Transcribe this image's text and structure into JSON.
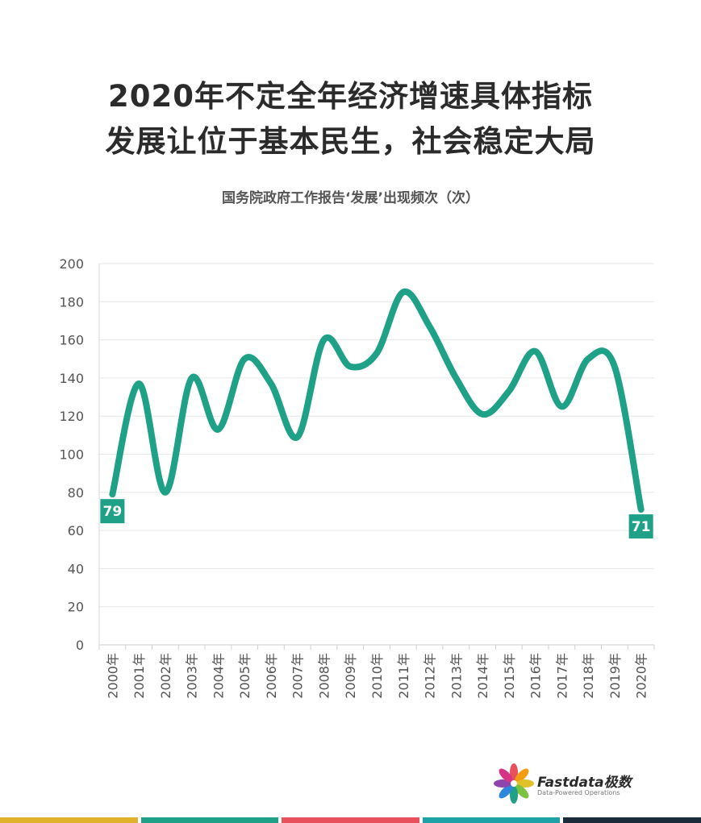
{
  "title": {
    "line1": "2020年不定全年经济增速具体指标",
    "line2": "发展让位于基本民生，社会稳定大局"
  },
  "chart_data": {
    "type": "line",
    "title": "国务院政府工作报告‘发展’出现频次（次）",
    "xlabel": "",
    "ylabel": "",
    "ylim": [
      0,
      200
    ],
    "yticks": [
      0,
      20,
      40,
      60,
      80,
      100,
      120,
      140,
      160,
      180,
      200
    ],
    "grid": true,
    "categories": [
      "2000年",
      "2001年",
      "2002年",
      "2003年",
      "2004年",
      "2005年",
      "2006年",
      "2007年",
      "2008年",
      "2009年",
      "2010年",
      "2011年",
      "2012年",
      "2013年",
      "2014年",
      "2015年",
      "2016年",
      "2017年",
      "2018年",
      "2019年",
      "2020年"
    ],
    "series": [
      {
        "values": [
          79,
          137,
          80,
          140,
          113,
          150,
          137,
          109,
          160,
          146,
          153,
          185,
          167,
          140,
          121,
          133,
          154,
          125,
          150,
          146,
          71
        ]
      }
    ],
    "data_labels": [
      {
        "index": 0,
        "text": "79"
      },
      {
        "index": 20,
        "text": "71"
      }
    ],
    "line_color": "#1fa187"
  },
  "logo": {
    "name": "Fastdata极数",
    "tagline": "Data-Powered Operations"
  },
  "bottom_bar_colors": [
    "#e0b12a",
    "#1fa187",
    "#e8505b",
    "#1fa2a7",
    "#1c2b3a"
  ]
}
